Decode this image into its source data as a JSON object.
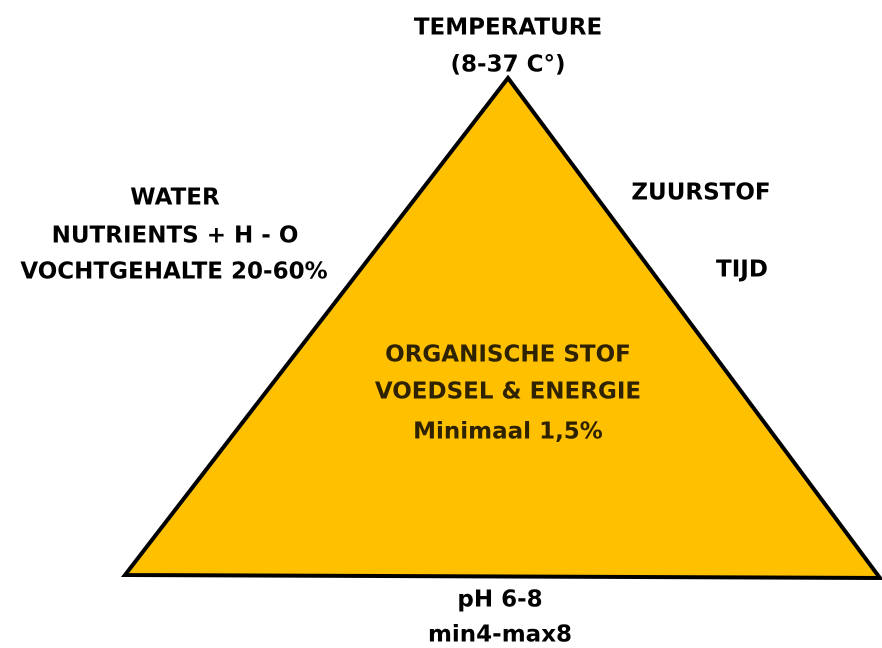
{
  "top": {
    "lines": [
      "TEMPERATURE",
      "(8-37 C°)"
    ]
  },
  "left": {
    "lines": [
      "WATER",
      "NUTRIENTS + H - O",
      "VOCHTGEHALTE 20-60%"
    ]
  },
  "right": {
    "lines": [
      "ZUURSTOF",
      "TIJD"
    ]
  },
  "center": {
    "lines": [
      "ORGANISCHE STOF",
      "VOEDSEL & ENERGIE",
      "Minimaal 1,5%"
    ]
  },
  "bottom": {
    "lines": [
      "pH 6-8",
      "min4-max8"
    ]
  }
}
